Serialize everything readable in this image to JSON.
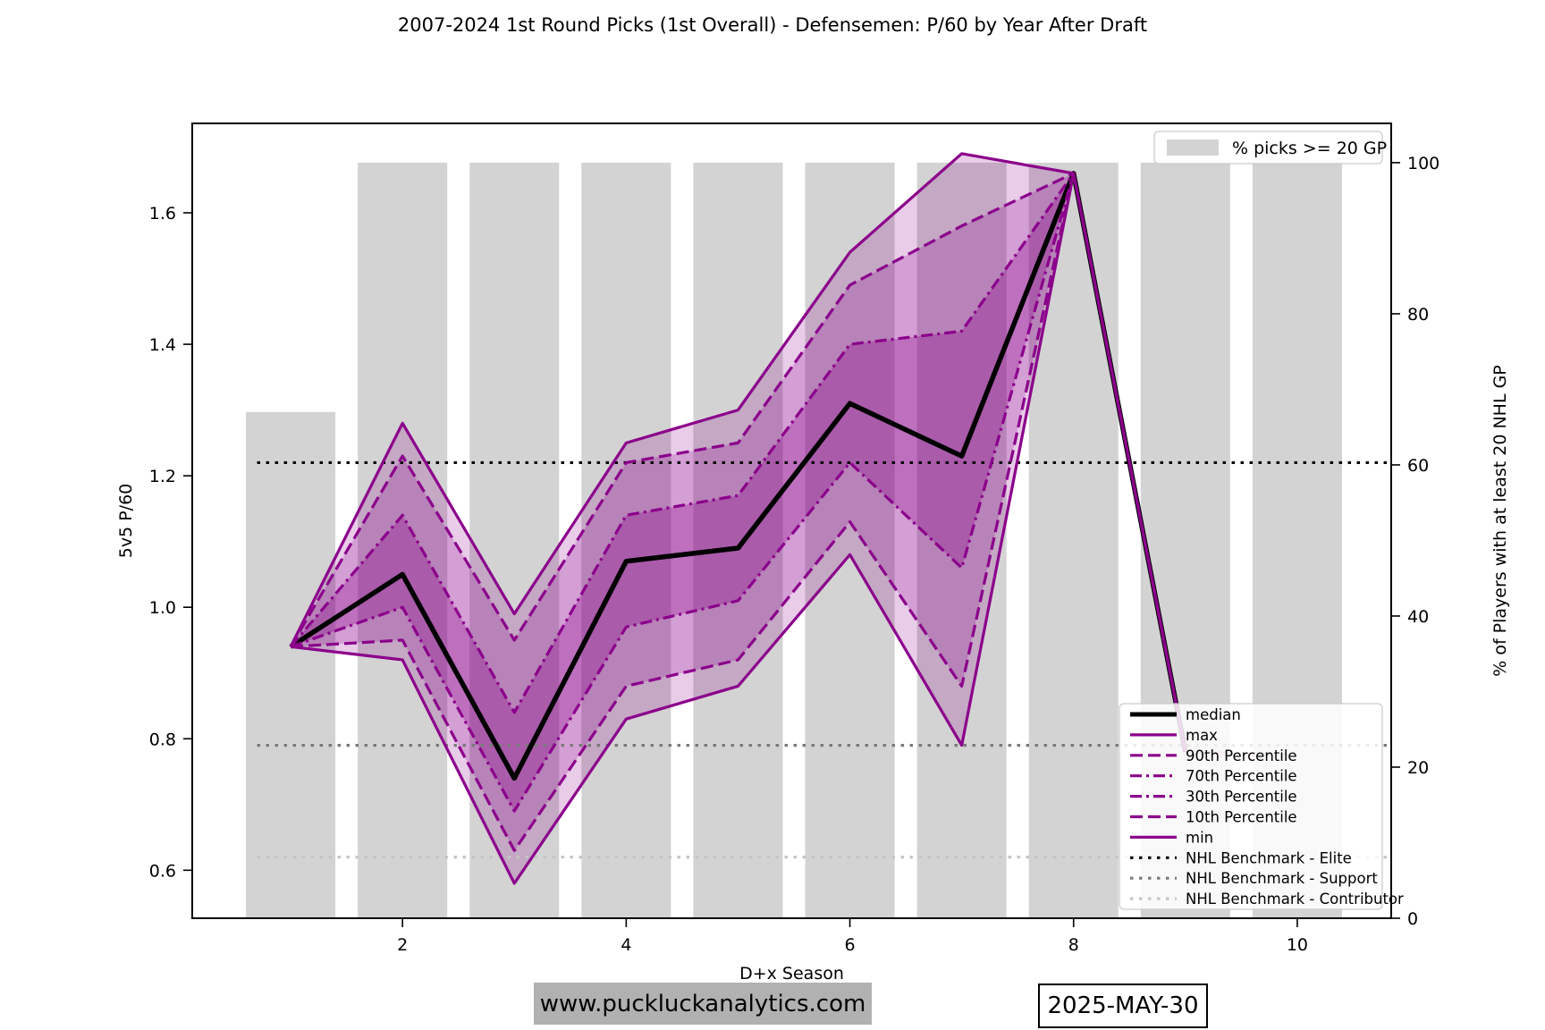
{
  "title": "2007-2024 1st Round Picks (1st Overall) - Defensemen: P/60 by Year After Draft",
  "footer": {
    "website": "www.puckluckanalytics.com",
    "date": "2025-MAY-30"
  },
  "legend_bars_label": "% picks >= 20 GP",
  "chart_data": {
    "type": "line",
    "title": "2007-2024 1st Round Picks (1st Overall) - Defensemen: P/60 by Year After Draft",
    "xlabel": "D+x Season",
    "ylabel_left": "5v5 P/60",
    "ylabel_right": "% of Players with at least 20 NHL GP",
    "x_ticks": [
      2,
      4,
      6,
      8,
      10
    ],
    "y_left_ticks": [
      0.6,
      0.8,
      1.0,
      1.2,
      1.4,
      1.6
    ],
    "y_right_ticks": [
      0,
      20,
      40,
      60,
      80,
      100
    ],
    "x_range": [
      0.12,
      10.84
    ],
    "y_left_range": [
      0.527,
      1.736
    ],
    "y_right_range": [
      0,
      105.2
    ],
    "grid": false,
    "x": [
      1,
      2,
      3,
      4,
      5,
      6,
      7,
      8,
      9
    ],
    "series": [
      {
        "name": "median",
        "color": "#000000",
        "width": 5.5,
        "dash": "solid",
        "values": [
          0.94,
          1.05,
          0.74,
          1.07,
          1.09,
          1.31,
          1.23,
          1.66,
          0.78
        ]
      },
      {
        "name": "max",
        "color": "#8B008B",
        "width": 3.2,
        "dash": "solid",
        "values": [
          0.94,
          1.28,
          0.99,
          1.25,
          1.3,
          1.54,
          1.69,
          1.66,
          0.78
        ]
      },
      {
        "name": "90th Percentile",
        "color": "#8B008B",
        "width": 3.2,
        "dash": "dashed",
        "values": [
          0.94,
          1.23,
          0.95,
          1.22,
          1.25,
          1.49,
          1.58,
          1.66,
          0.78
        ]
      },
      {
        "name": "70th Percentile",
        "color": "#8B008B",
        "width": 3.2,
        "dash": "dashdot",
        "values": [
          0.94,
          1.14,
          0.84,
          1.14,
          1.17,
          1.4,
          1.42,
          1.66,
          0.78
        ]
      },
      {
        "name": "30th Percentile",
        "color": "#8B008B",
        "width": 3.2,
        "dash": "dashdot",
        "values": [
          0.94,
          1.0,
          0.69,
          0.97,
          1.01,
          1.22,
          1.06,
          1.66,
          0.78
        ]
      },
      {
        "name": "10th Percentile",
        "color": "#8B008B",
        "width": 3.2,
        "dash": "dashed",
        "values": [
          0.94,
          0.95,
          0.63,
          0.88,
          0.92,
          1.13,
          0.88,
          1.66,
          0.78
        ]
      },
      {
        "name": "min",
        "color": "#8B008B",
        "width": 3.2,
        "dash": "solid",
        "values": [
          0.94,
          0.92,
          0.58,
          0.83,
          0.88,
          1.08,
          0.79,
          1.66,
          0.78
        ]
      }
    ],
    "collapsed_tail": {
      "x": [
        9,
        10
      ],
      "values": [
        0.78,
        0.775
      ],
      "color": "rgba(139,0,139,0.30)",
      "width": 4
    },
    "bands": [
      {
        "lower": "min",
        "upper": "max",
        "alpha": 0.2
      },
      {
        "lower": "10th Percentile",
        "upper": "90th Percentile",
        "alpha": 0.22
      },
      {
        "lower": "30th Percentile",
        "upper": "70th Percentile",
        "alpha": 0.3
      }
    ],
    "band_rgb": "139,0,139",
    "bars": {
      "label": "% picks >= 20 GP",
      "axis": "right",
      "color": "#d3d3d3",
      "width": 0.8,
      "x": [
        1,
        2,
        3,
        4,
        5,
        6,
        7,
        8,
        9,
        10
      ],
      "values": [
        67,
        100,
        100,
        100,
        100,
        100,
        100,
        100,
        100,
        100
      ]
    },
    "benchmarks": [
      {
        "label": "NHL Benchmark - Elite",
        "value": 1.22,
        "color": "#000000"
      },
      {
        "label": "NHL Benchmark - Support",
        "value": 0.79,
        "color": "#7a7a7a"
      },
      {
        "label": "NHL Benchmark - Contributor",
        "value": 0.62,
        "color": "#c6c6c6"
      }
    ],
    "benchmark_span": [
      0.7,
      10.8
    ],
    "legend_position": {
      "bars": "upper right",
      "series": "lower right"
    }
  }
}
